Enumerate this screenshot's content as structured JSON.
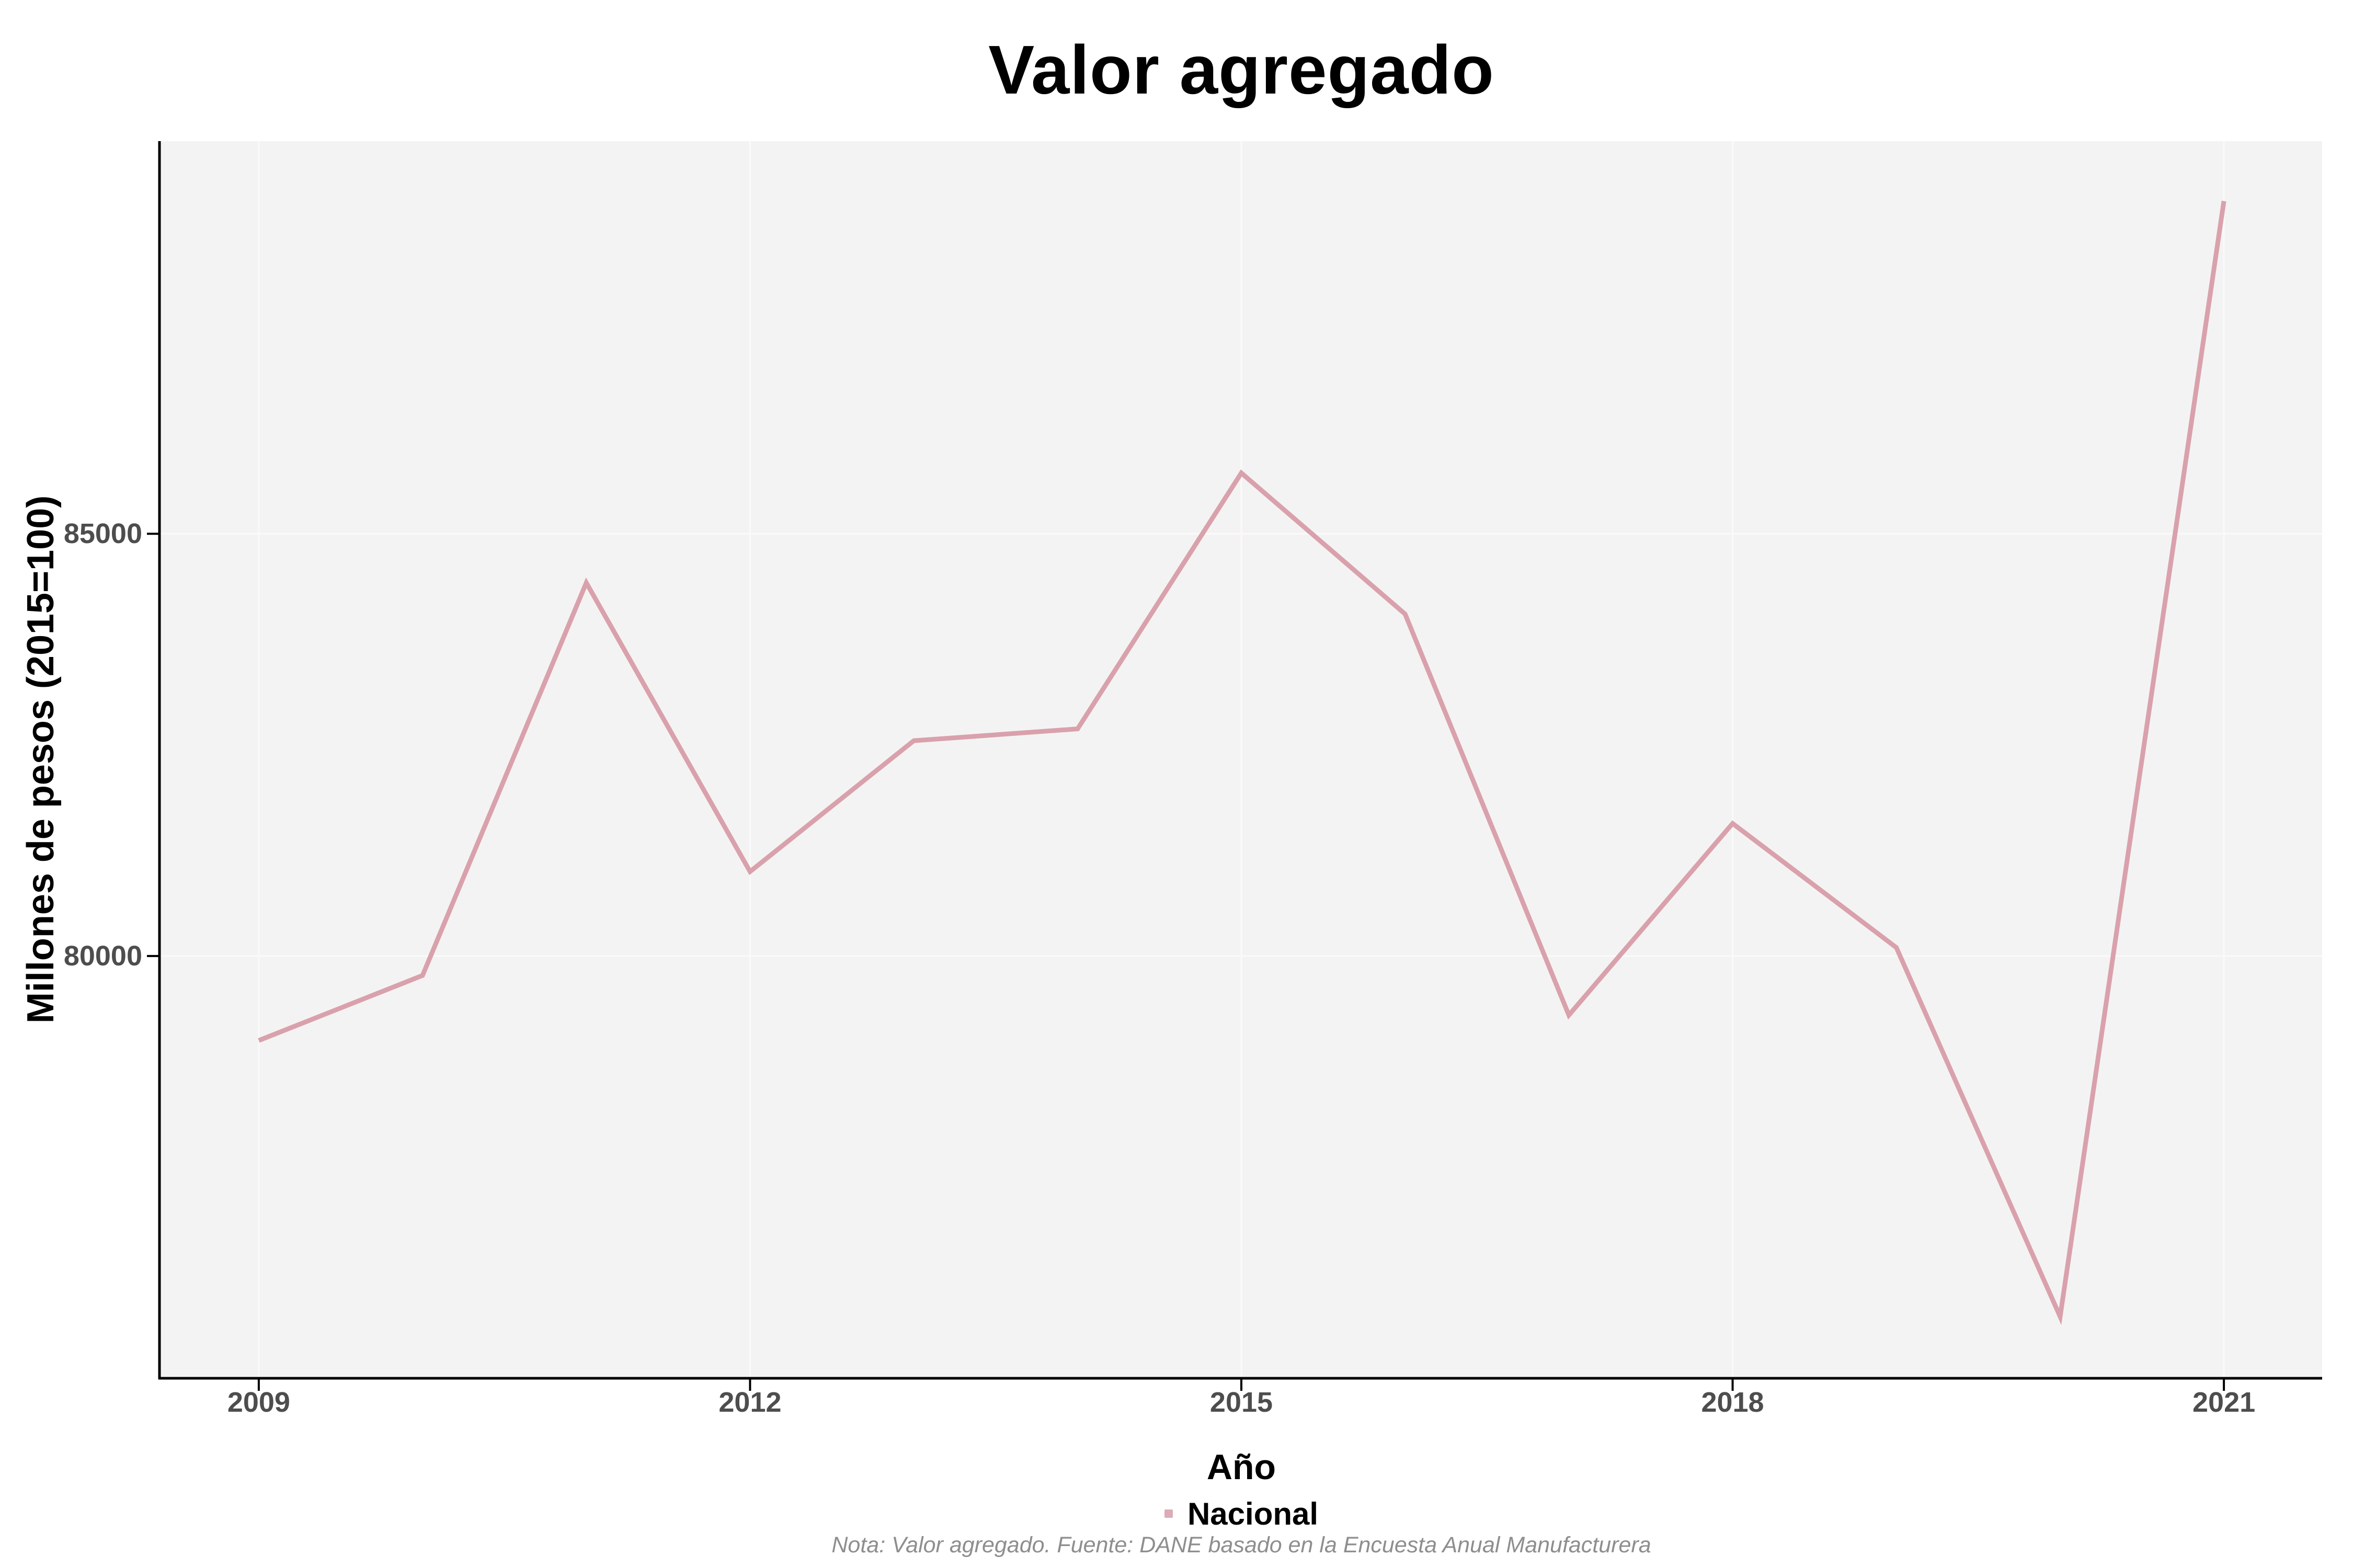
{
  "title": "Valor agregado",
  "axes": {
    "x": {
      "title": "Año",
      "tick_labels": [
        "2009",
        "2012",
        "2015",
        "2018",
        "2021"
      ]
    },
    "y": {
      "title": "Millones de pesos (2015=100)",
      "tick_labels": [
        "80000",
        "85000"
      ]
    }
  },
  "legend": {
    "label": "Nacional"
  },
  "caption": "Nota: Valor agregado. Fuente: DANE basado en la Encuesta Anual Manufacturera",
  "colors": {
    "line": "#d9a1ac",
    "legend_key": "#dcacb6",
    "plot_bg": "#f4f3f3",
    "gridline": "#fbfafa",
    "axis_line": "#000000",
    "tick_mark": "#000000",
    "tick_label": "#4d4d4d",
    "caption_text": "#8e8e8e"
  },
  "chart_data": {
    "type": "line",
    "title": "Valor agregado",
    "xlabel": "Año",
    "ylabel": "Millones de pesos (2015=100)",
    "series": [
      {
        "name": "Nacional",
        "x": [
          2009,
          2010,
          2011,
          2012,
          2013,
          2014,
          2015,
          2016,
          2017,
          2018,
          2019,
          2020,
          2021
        ],
        "values": [
          79000,
          79770,
          84420,
          81000,
          82550,
          82690,
          85720,
          84050,
          79300,
          81570,
          80100,
          75730,
          88940
        ]
      }
    ],
    "x_ticks": [
      2009,
      2012,
      2015,
      2018,
      2021
    ],
    "y_ticks": [
      80000,
      85000
    ],
    "xlim": [
      2008.4,
      2021.6
    ],
    "ylim": [
      75000,
      89650
    ],
    "grid": "major",
    "legend_position": "bottom"
  }
}
